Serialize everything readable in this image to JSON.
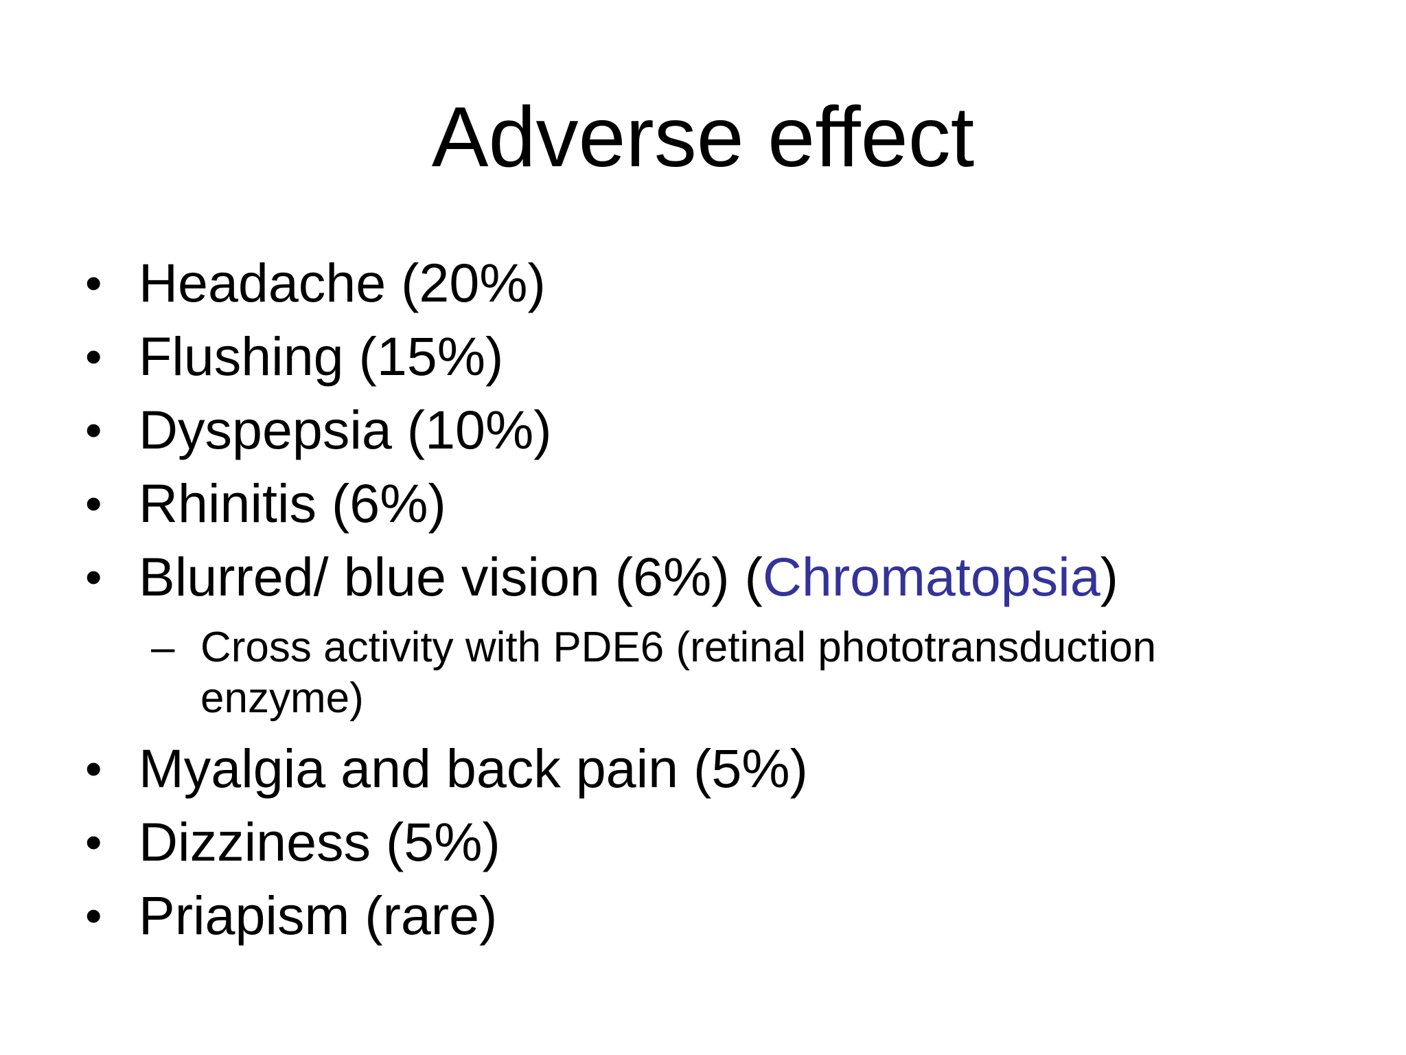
{
  "slide": {
    "title": "Adverse effect",
    "accent_color": "#333399",
    "bullets": [
      {
        "text": "Headache (20%)"
      },
      {
        "text": "Flushing (15%)"
      },
      {
        "text": "Dyspepsia (10%)"
      },
      {
        "text": "Rhinitis (6%)"
      },
      {
        "text_before": "Blurred/ blue vision (6%) (",
        "highlight": "Chromatopsia",
        "text_after": ")"
      },
      {
        "text": "Myalgia and back pain (5%)"
      },
      {
        "text": "Dizziness (5%)"
      },
      {
        "text": "Priapism (rare)"
      }
    ],
    "sub_bullets": [
      {
        "text": "Cross activity with PDE6 (retinal phototransduction enzyme)"
      }
    ],
    "bullet_glyph": "•",
    "sub_bullet_glyph": "–"
  }
}
